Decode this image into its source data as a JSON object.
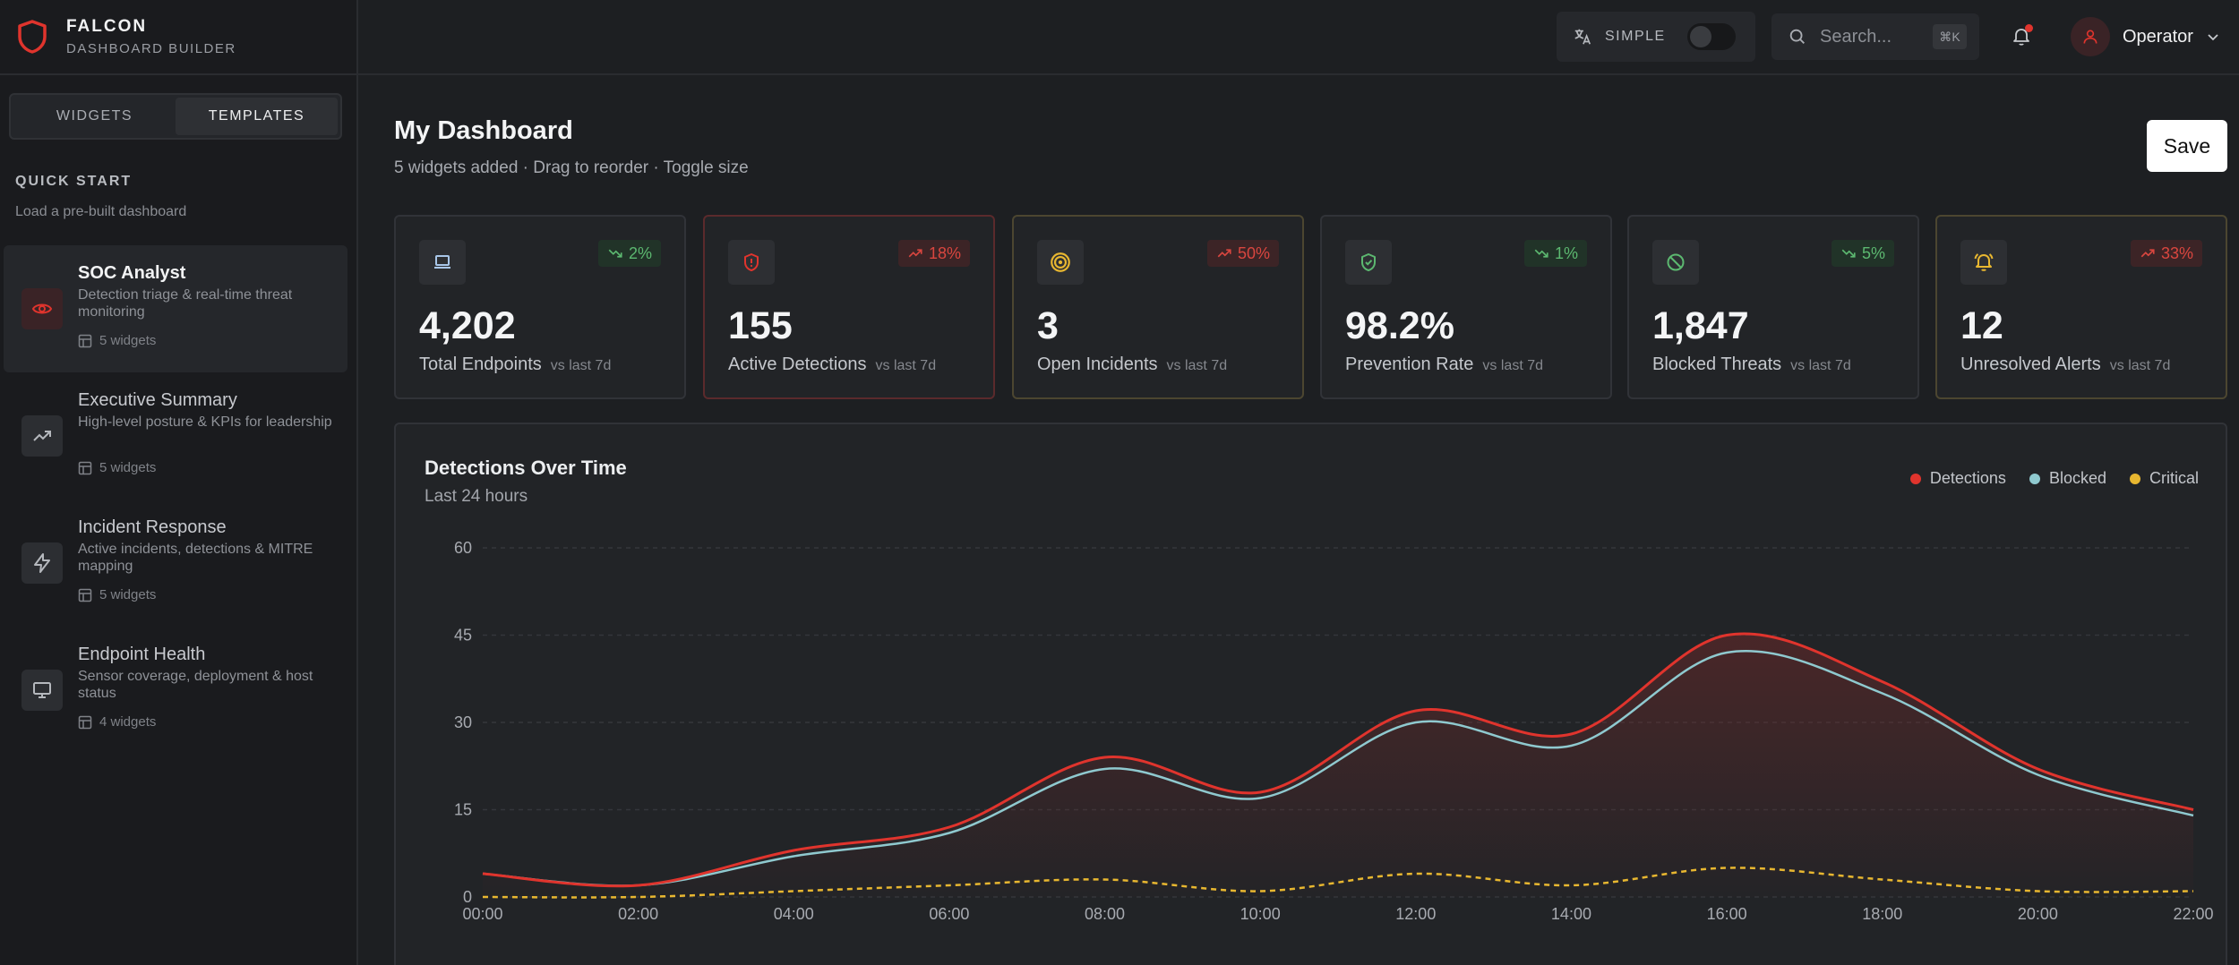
{
  "brand": {
    "title": "FALCON",
    "subtitle": "DASHBOARD BUILDER"
  },
  "sidebar": {
    "tabs": [
      {
        "label": "WIDGETS"
      },
      {
        "label": "TEMPLATES"
      }
    ],
    "quick_start": {
      "title": "QUICK START",
      "subtitle": "Load a pre-built dashboard"
    },
    "templates": [
      {
        "name": "SOC Analyst",
        "desc": "Detection triage & real-time threat monitoring",
        "count": "5 widgets",
        "icon": "eye-icon"
      },
      {
        "name": "Executive Summary",
        "desc": "High-level posture & KPIs for leadership",
        "count": "5 widgets",
        "icon": "trending-up-icon"
      },
      {
        "name": "Incident Response",
        "desc": "Active incidents, detections & MITRE mapping",
        "count": "5 widgets",
        "icon": "lightning-icon"
      },
      {
        "name": "Endpoint Health",
        "desc": "Sensor coverage, deployment & host status",
        "count": "4 widgets",
        "icon": "monitor-icon"
      }
    ]
  },
  "topbar": {
    "mode_label": "SIMPLE",
    "search_placeholder": "Search...",
    "search_shortcut": "⌘K",
    "user_name": "Operator"
  },
  "page": {
    "title": "My Dashboard",
    "subtitle": "5 widgets added · Drag to reorder · Toggle size",
    "save_label": "Save"
  },
  "stats": [
    {
      "value": "4,202",
      "label": "Total Endpoints",
      "vs": "vs last 7d",
      "change": "2%",
      "direction": "down",
      "icon": "laptop-icon"
    },
    {
      "value": "155",
      "label": "Active Detections",
      "vs": "vs last 7d",
      "change": "18%",
      "direction": "up",
      "icon": "shield-alert-icon"
    },
    {
      "value": "3",
      "label": "Open Incidents",
      "vs": "vs last 7d",
      "change": "50%",
      "direction": "up",
      "icon": "target-icon"
    },
    {
      "value": "98.2%",
      "label": "Prevention Rate",
      "vs": "vs last 7d",
      "change": "1%",
      "direction": "down",
      "icon": "shield-check-icon"
    },
    {
      "value": "1,847",
      "label": "Blocked Threats",
      "vs": "vs last 7d",
      "change": "5%",
      "direction": "down",
      "icon": "ban-icon"
    },
    {
      "value": "12",
      "label": "Unresolved Alerts",
      "vs": "vs last 7d",
      "change": "33%",
      "direction": "up",
      "icon": "bell-ring-icon"
    }
  ],
  "chart": {
    "title": "Detections Over Time",
    "subtitle": "Last 24 hours"
  },
  "chart_data": {
    "type": "area",
    "title": "Detections Over Time",
    "subtitle": "Last 24 hours",
    "x": [
      "00:00",
      "02:00",
      "04:00",
      "06:00",
      "08:00",
      "10:00",
      "12:00",
      "14:00",
      "16:00",
      "18:00",
      "20:00",
      "22:00"
    ],
    "ylim": [
      0,
      60
    ],
    "yticks": [
      0,
      15,
      30,
      45,
      60
    ],
    "legend_position": "top-right",
    "series": [
      {
        "name": "Detections",
        "color": "#e0342d",
        "values": [
          4,
          2,
          8,
          12,
          24,
          18,
          32,
          28,
          45,
          37,
          22,
          15
        ]
      },
      {
        "name": "Blocked",
        "color": "#8fc9cf",
        "values": [
          4,
          2,
          7,
          11,
          22,
          17,
          30,
          26,
          42,
          35,
          21,
          14
        ]
      },
      {
        "name": "Critical",
        "color": "#e8b730",
        "values": [
          0,
          0,
          1,
          2,
          3,
          1,
          4,
          2,
          5,
          3,
          1,
          1
        ]
      }
    ]
  }
}
